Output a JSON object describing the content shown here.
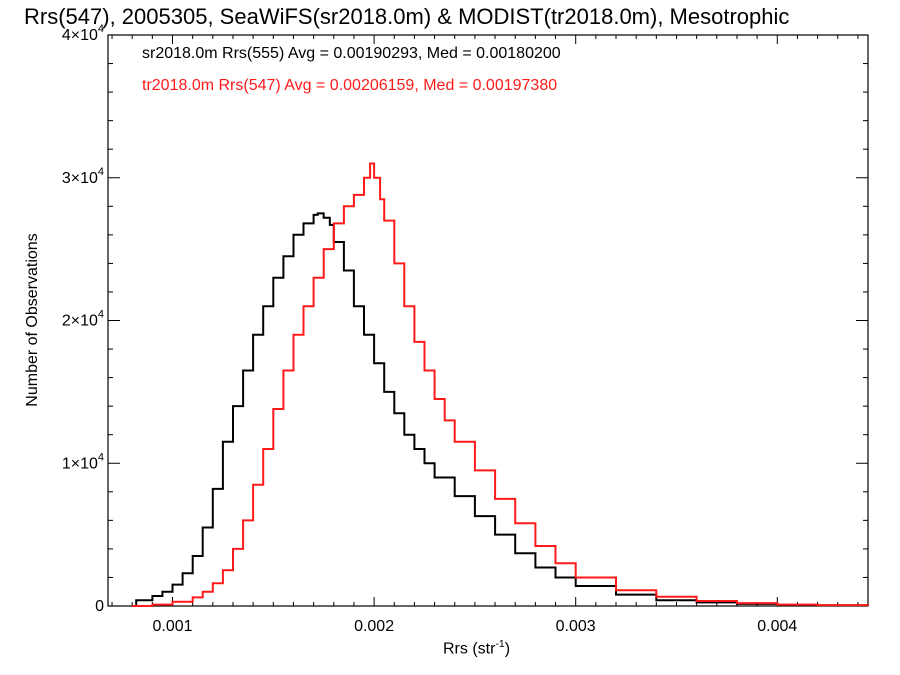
{
  "chart_data": {
    "type": "step-line histogram",
    "title": "Rrs(547), 2005305, SeaWiFS(sr2018.0m) & MODIST(tr2018.0m), Mesotrophic",
    "xlabel_main": "Rrs (str",
    "xlabel_sup": "-1",
    "xlabel_tail": ")",
    "ylabel": "Number of Observations",
    "xlim": [
      0.00068,
      0.00445
    ],
    "ylim": [
      0,
      40000
    ],
    "x_ticks": [
      {
        "value": 0.001,
        "label": "0.001"
      },
      {
        "value": 0.002,
        "label": "0.002"
      },
      {
        "value": 0.003,
        "label": "0.003"
      },
      {
        "value": 0.004,
        "label": "0.004"
      }
    ],
    "y_ticks": [
      {
        "value": 0,
        "base": "0",
        "exp": ""
      },
      {
        "value": 10000,
        "base": "1×10",
        "exp": "4"
      },
      {
        "value": 20000,
        "base": "2×10",
        "exp": "4"
      },
      {
        "value": 30000,
        "base": "3×10",
        "exp": "4"
      },
      {
        "value": 40000,
        "base": "4×10",
        "exp": "4"
      }
    ],
    "series": [
      {
        "label": "sr2018.0m Rrs(555) Avg = 0.00190293, Med = 0.00180200",
        "color": "#000000",
        "points": [
          [
            0.0008,
            0
          ],
          [
            0.00082,
            400
          ],
          [
            0.0009,
            700
          ],
          [
            0.00095,
            1000
          ],
          [
            0.001,
            1500
          ],
          [
            0.00105,
            2300
          ],
          [
            0.0011,
            3500
          ],
          [
            0.00115,
            5500
          ],
          [
            0.0012,
            8200
          ],
          [
            0.00125,
            11500
          ],
          [
            0.0013,
            14000
          ],
          [
            0.00135,
            16500
          ],
          [
            0.0014,
            19000
          ],
          [
            0.00145,
            21000
          ],
          [
            0.0015,
            23000
          ],
          [
            0.00155,
            24500
          ],
          [
            0.0016,
            26000
          ],
          [
            0.00165,
            26800
          ],
          [
            0.0017,
            27400
          ],
          [
            0.00172,
            27500
          ],
          [
            0.00175,
            27200
          ],
          [
            0.00178,
            26700
          ],
          [
            0.0018,
            25500
          ],
          [
            0.00185,
            23500
          ],
          [
            0.0019,
            21000
          ],
          [
            0.00195,
            19000
          ],
          [
            0.002,
            17000
          ],
          [
            0.00205,
            15000
          ],
          [
            0.0021,
            13500
          ],
          [
            0.00215,
            12000
          ],
          [
            0.0022,
            11000
          ],
          [
            0.00225,
            10000
          ],
          [
            0.0023,
            9000
          ],
          [
            0.0024,
            7700
          ],
          [
            0.0025,
            6300
          ],
          [
            0.0026,
            5000
          ],
          [
            0.0027,
            3700
          ],
          [
            0.0028,
            2700
          ],
          [
            0.0029,
            2000
          ],
          [
            0.003,
            1400
          ],
          [
            0.0032,
            800
          ],
          [
            0.0034,
            400
          ],
          [
            0.0036,
            250
          ],
          [
            0.0038,
            150
          ],
          [
            0.004,
            80
          ],
          [
            0.0042,
            40
          ],
          [
            0.00445,
            20
          ]
        ]
      },
      {
        "label": "tr2018.0m Rrs(547) Avg = 0.00206159, Med = 0.00197380",
        "color": "#ff1a1a",
        "points": [
          [
            0.0008,
            0
          ],
          [
            0.0009,
            100
          ],
          [
            0.001,
            300
          ],
          [
            0.0011,
            600
          ],
          [
            0.00115,
            1000
          ],
          [
            0.0012,
            1600
          ],
          [
            0.00125,
            2500
          ],
          [
            0.0013,
            4000
          ],
          [
            0.00135,
            6000
          ],
          [
            0.0014,
            8500
          ],
          [
            0.00145,
            11000
          ],
          [
            0.0015,
            13800
          ],
          [
            0.00155,
            16500
          ],
          [
            0.0016,
            19000
          ],
          [
            0.00165,
            21000
          ],
          [
            0.0017,
            23000
          ],
          [
            0.00175,
            25000
          ],
          [
            0.0018,
            26800
          ],
          [
            0.00185,
            28000
          ],
          [
            0.0019,
            28800
          ],
          [
            0.00195,
            30000
          ],
          [
            0.00198,
            31000
          ],
          [
            0.002,
            30000
          ],
          [
            0.00203,
            28500
          ],
          [
            0.00205,
            27000
          ],
          [
            0.0021,
            24000
          ],
          [
            0.00215,
            21000
          ],
          [
            0.0022,
            18500
          ],
          [
            0.00225,
            16500
          ],
          [
            0.0023,
            14500
          ],
          [
            0.00235,
            13000
          ],
          [
            0.0024,
            11500
          ],
          [
            0.0025,
            9500
          ],
          [
            0.0026,
            7500
          ],
          [
            0.0027,
            5800
          ],
          [
            0.0028,
            4200
          ],
          [
            0.0029,
            3000
          ],
          [
            0.003,
            2000
          ],
          [
            0.0032,
            1100
          ],
          [
            0.0034,
            650
          ],
          [
            0.0036,
            350
          ],
          [
            0.0038,
            200
          ],
          [
            0.004,
            100
          ],
          [
            0.0042,
            60
          ],
          [
            0.00445,
            30
          ]
        ]
      }
    ]
  }
}
